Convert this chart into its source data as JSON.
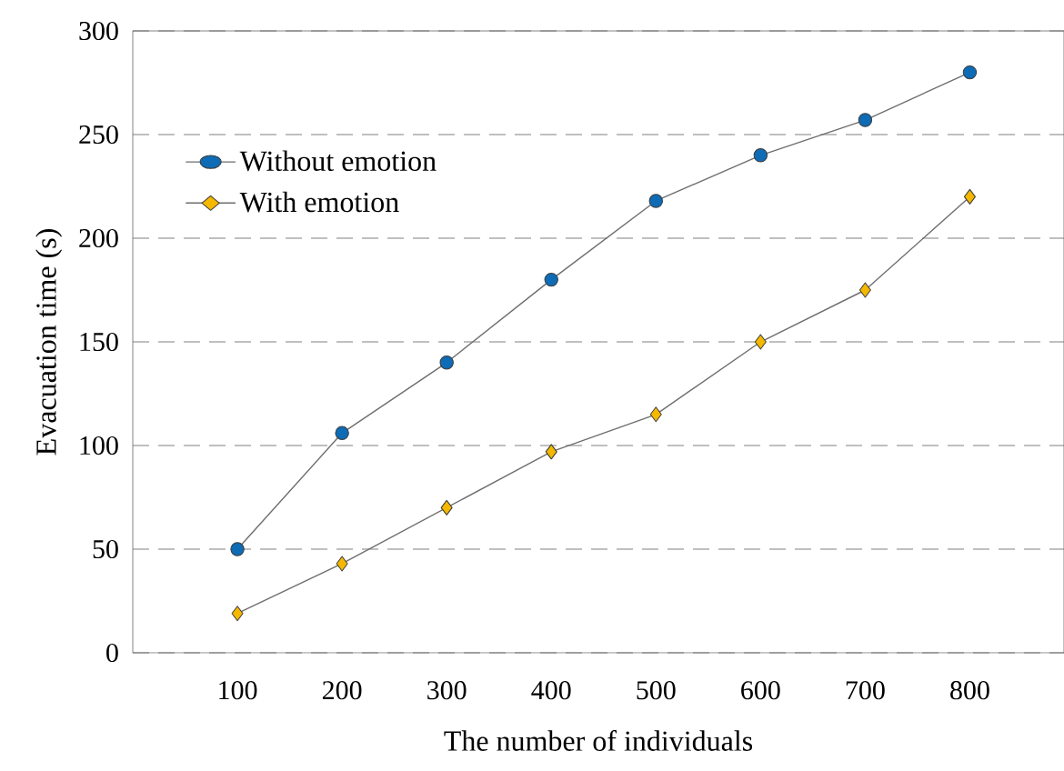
{
  "chart_data": {
    "type": "line",
    "xlabel": "The number of individuals",
    "ylabel": "Evacuation time (s)",
    "x": [
      100,
      200,
      300,
      400,
      500,
      600,
      700,
      800
    ],
    "series": [
      {
        "name": "Without emotion",
        "color": "#0e6bb5",
        "marker": "circle",
        "values": [
          50,
          106,
          140,
          180,
          218,
          240,
          257,
          280
        ]
      },
      {
        "name": "With emotion",
        "color": "#f5b800",
        "marker": "diamond",
        "values": [
          19,
          43,
          70,
          97,
          115,
          150,
          175,
          220
        ]
      }
    ],
    "xlim": [
      0,
      890
    ],
    "xticks": [
      100,
      200,
      300,
      400,
      500,
      600,
      700,
      800
    ],
    "ylim": [
      0,
      300
    ],
    "yticks": [
      0,
      50,
      100,
      150,
      200,
      250,
      300
    ],
    "grid": "y",
    "legend": "top left",
    "line_style": "solid"
  }
}
